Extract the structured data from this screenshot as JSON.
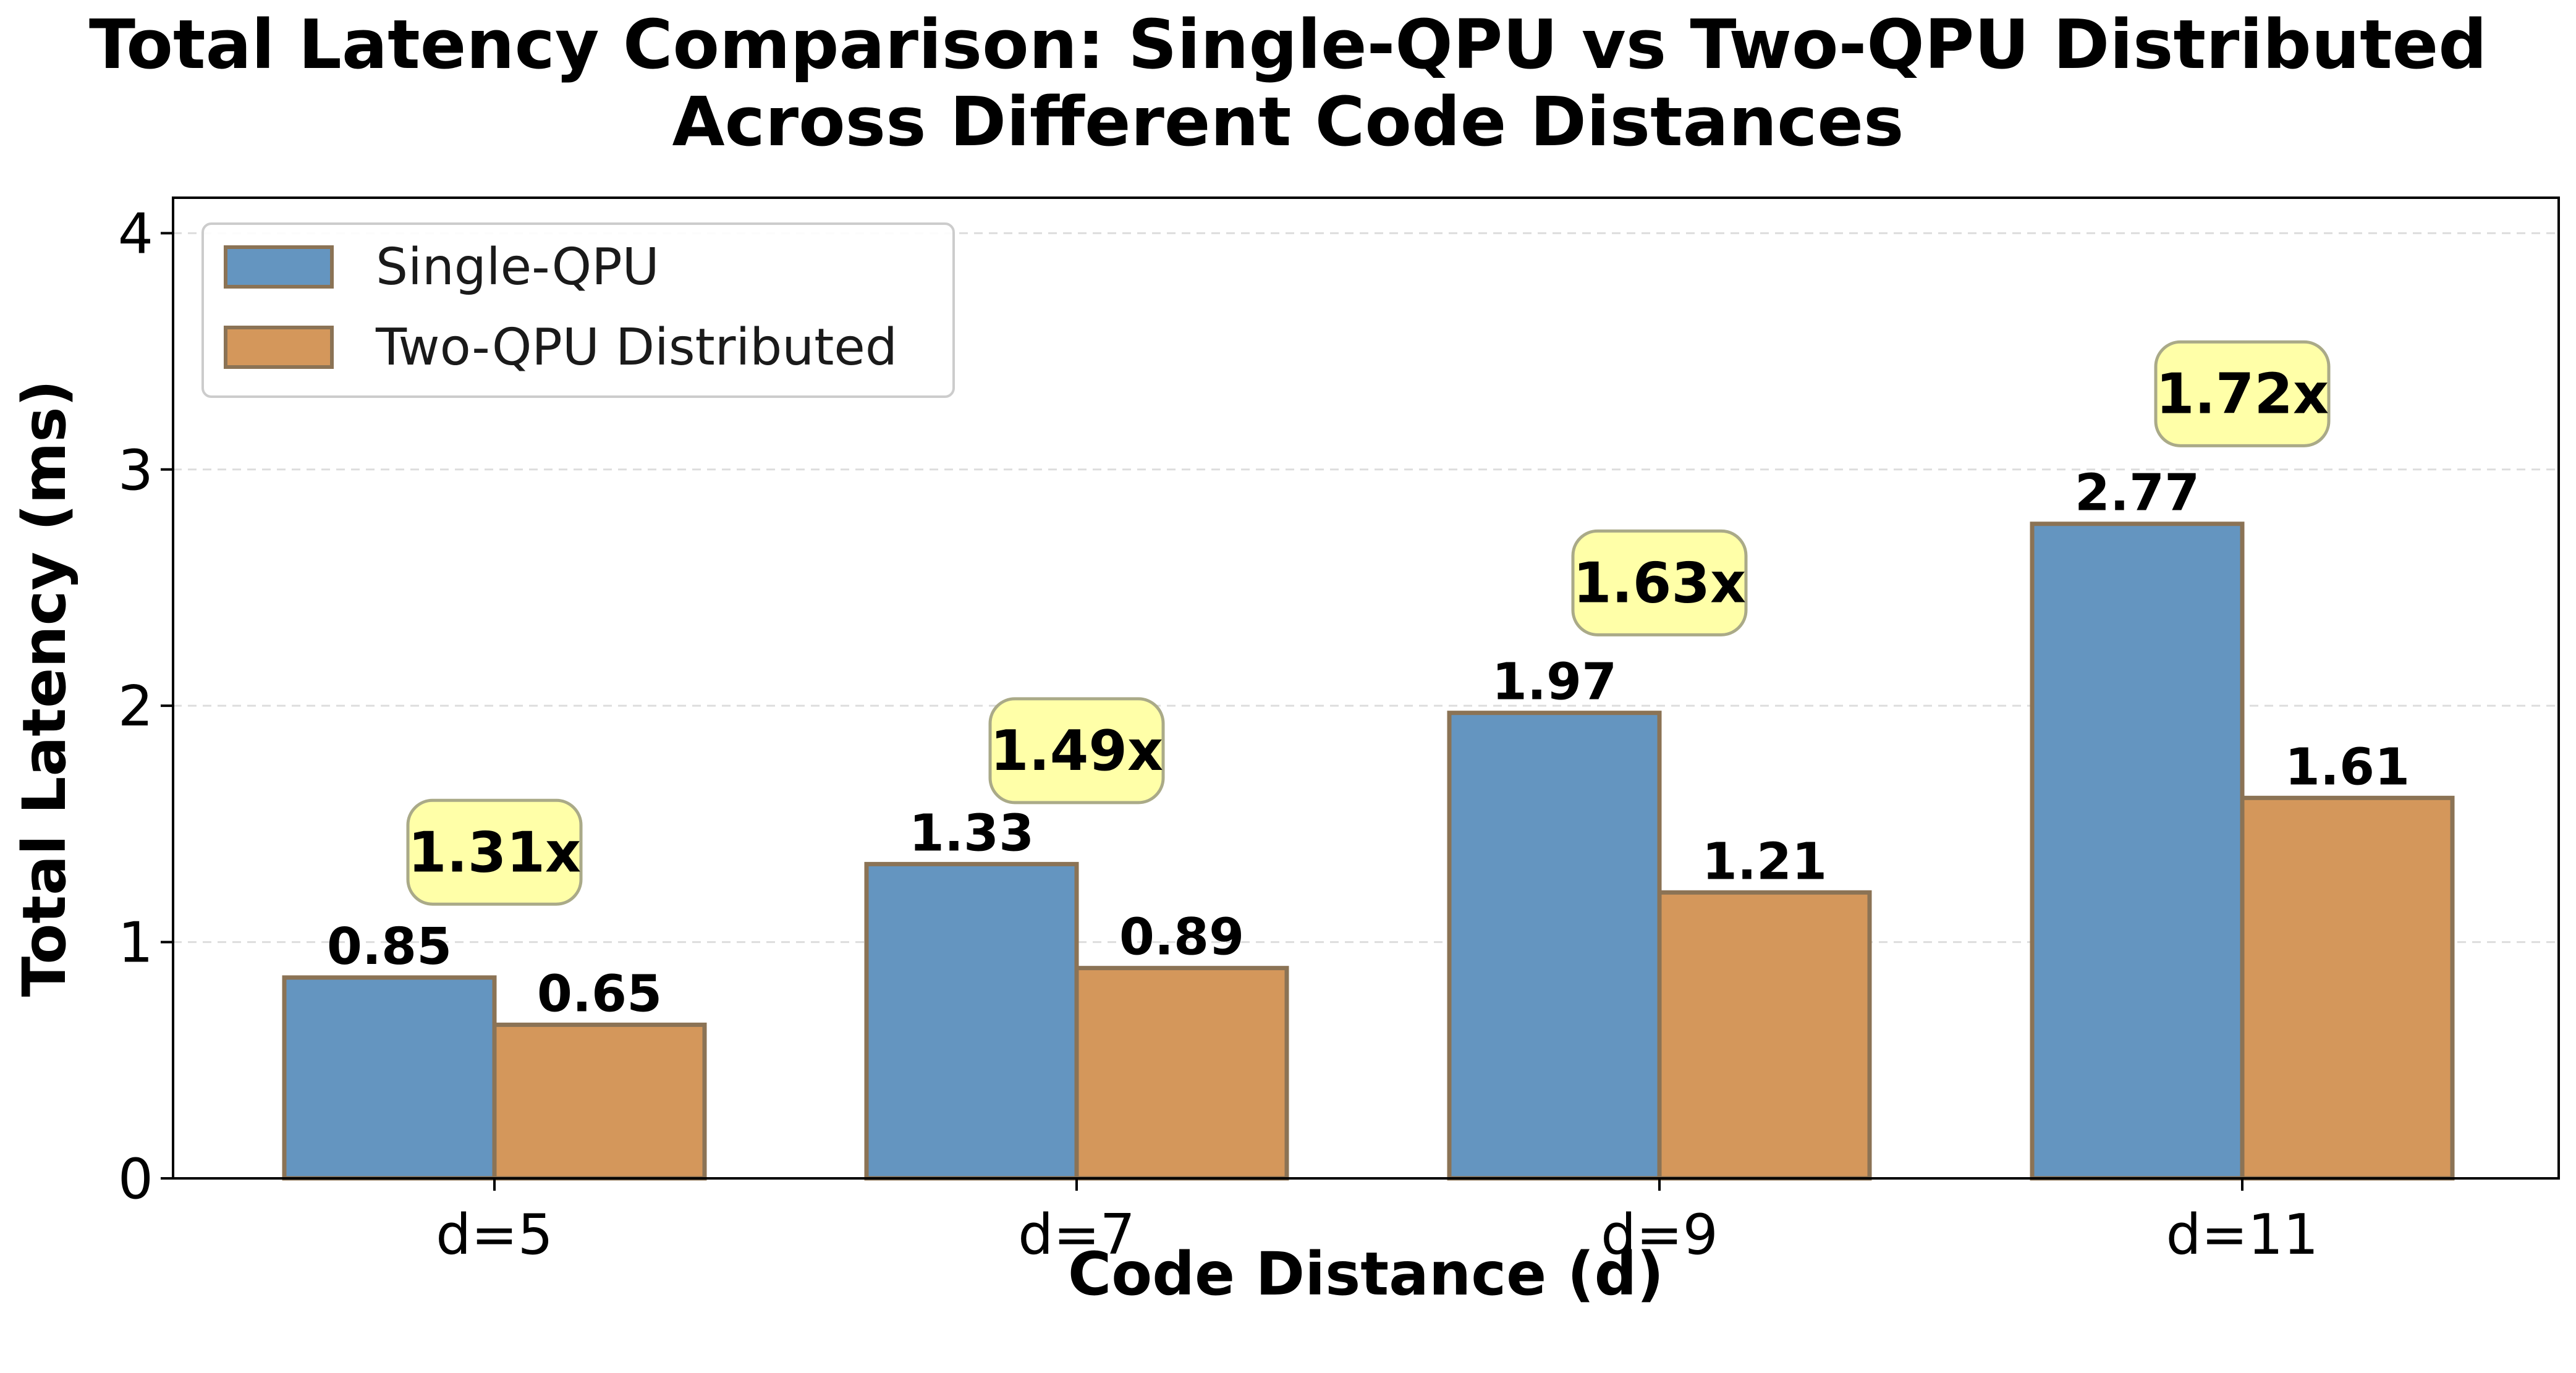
{
  "chart_data": {
    "type": "bar",
    "title_lines": [
      "Total Latency Comparison: Single-QPU vs Two-QPU Distributed",
      "Across Different Code Distances"
    ],
    "xlabel": "Code Distance (d)",
    "ylabel": "Total Latency (ms)",
    "categories": [
      "d=5",
      "d=7",
      "d=9",
      "d=11"
    ],
    "ylim": [
      0,
      4.15
    ],
    "yticks": [
      0,
      1,
      2,
      3,
      4
    ],
    "grid": "horizontal dashed",
    "legend_position": "top-left",
    "series": [
      {
        "name": "Single-QPU",
        "color": "#6495c0",
        "values": [
          0.85,
          1.33,
          1.97,
          2.77
        ],
        "value_labels": [
          "0.85",
          "1.33",
          "1.97",
          "2.77"
        ]
      },
      {
        "name": "Two-QPU Distributed",
        "color": "#d4975b",
        "values": [
          0.65,
          0.89,
          1.21,
          1.61
        ],
        "value_labels": [
          "0.65",
          "0.89",
          "1.21",
          "1.61"
        ]
      }
    ],
    "speedup_annotations": [
      {
        "text": "1.31x",
        "y": 1.38
      },
      {
        "text": "1.49x",
        "y": 1.81
      },
      {
        "text": "1.63x",
        "y": 2.52
      },
      {
        "text": "1.72x",
        "y": 3.32
      }
    ],
    "colors": {
      "bar_edge": "#8b7355",
      "annotation_fill": "#ffffa8",
      "annotation_edge": "#aaaa88",
      "grid": "#dddddd"
    }
  }
}
